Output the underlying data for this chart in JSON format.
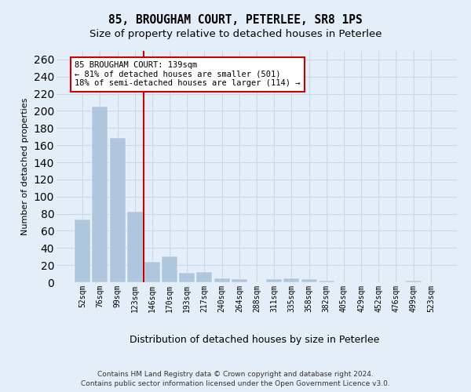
{
  "title": "85, BROUGHAM COURT, PETERLEE, SR8 1PS",
  "subtitle": "Size of property relative to detached houses in Peterlee",
  "xlabel": "Distribution of detached houses by size in Peterlee",
  "ylabel": "Number of detached properties",
  "footer_line1": "Contains HM Land Registry data © Crown copyright and database right 2024.",
  "footer_line2": "Contains public sector information licensed under the Open Government Licence v3.0.",
  "annotation_line1": "85 BROUGHAM COURT: 139sqm",
  "annotation_line2": "← 81% of detached houses are smaller (501)",
  "annotation_line3": "18% of semi-detached houses are larger (114) →",
  "bar_color": "#aec6de",
  "bar_edge_color": "#aec6de",
  "vline_color": "#cc0000",
  "vline_x_index": 3.5,
  "categories": [
    "52sqm",
    "76sqm",
    "99sqm",
    "123sqm",
    "146sqm",
    "170sqm",
    "193sqm",
    "217sqm",
    "240sqm",
    "264sqm",
    "288sqm",
    "311sqm",
    "335sqm",
    "358sqm",
    "382sqm",
    "405sqm",
    "429sqm",
    "452sqm",
    "476sqm",
    "499sqm",
    "523sqm"
  ],
  "values": [
    73,
    205,
    168,
    82,
    24,
    30,
    11,
    12,
    5,
    4,
    0,
    4,
    5,
    4,
    2,
    0,
    0,
    0,
    0,
    2,
    0
  ],
  "ylim": [
    0,
    270
  ],
  "yticks": [
    0,
    20,
    40,
    60,
    80,
    100,
    120,
    140,
    160,
    180,
    200,
    220,
    240,
    260
  ],
  "grid_color": "#c8d8e8",
  "bg_color": "#e4eef8",
  "title_fontsize": 10.5,
  "subtitle_fontsize": 9.5,
  "ylabel_fontsize": 8,
  "xlabel_fontsize": 9,
  "tick_fontsize": 7,
  "annotation_fontsize": 7.5,
  "footer_fontsize": 6.5
}
